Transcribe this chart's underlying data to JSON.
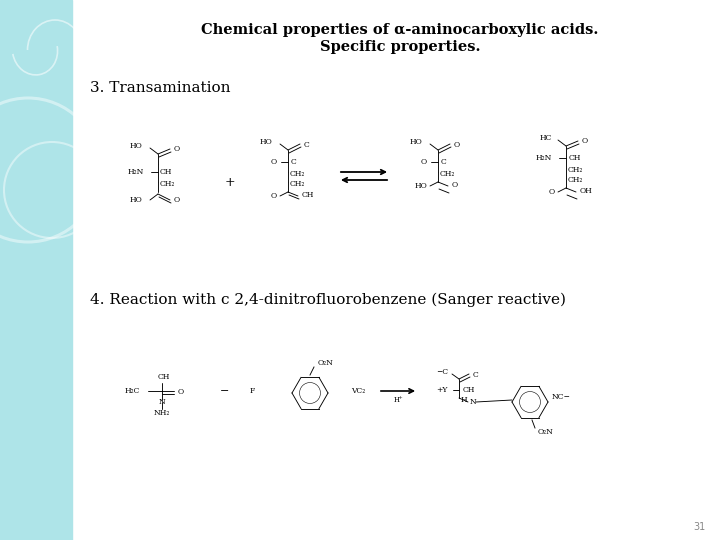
{
  "title_line1": "Chemical properties of α-aminocarboxylic acids.",
  "title_line2": "Specific properties.",
  "section3_label": "3. Transamination",
  "section4_label": "4. Reaction with с 2,4-dinitrofluorobenzene (Sanger reactive)",
  "page_number": "31",
  "bg_color": "#ffffff",
  "sidebar_color": "#aee4e8",
  "title_fontsize": 10.5,
  "label_fontsize": 11,
  "chem_fontsize": 5.5,
  "page_num_fontsize": 7
}
